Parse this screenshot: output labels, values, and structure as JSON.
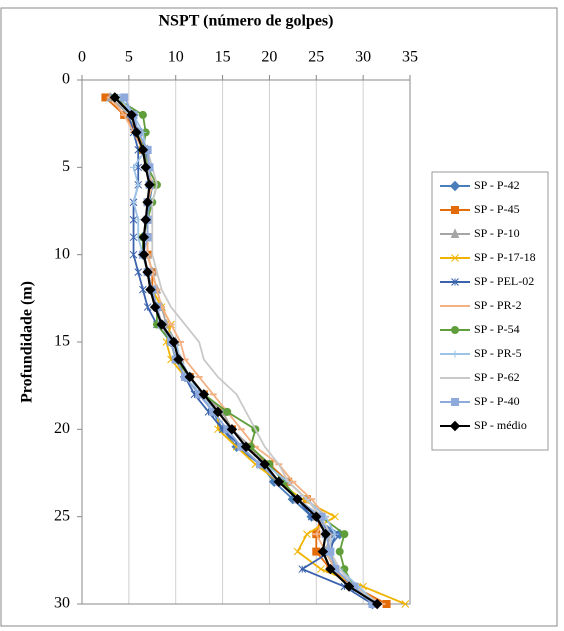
{
  "chart_data": {
    "type": "line",
    "orientation": "vertical",
    "title": "NSPT  (número de golpes)",
    "y_label": "Profundidade (m)",
    "xlim": [
      0,
      35
    ],
    "xticks": [
      0,
      5,
      10,
      15,
      20,
      25,
      30,
      35
    ],
    "ylim": [
      0,
      30
    ],
    "yticks": [
      0,
      5,
      10,
      15,
      20,
      25,
      30
    ],
    "y_inverted": true,
    "x_axis_position": "top",
    "grid": true,
    "legend": "right",
    "y": [
      1,
      2,
      3,
      4,
      5,
      6,
      7,
      8,
      9,
      10,
      11,
      12,
      13,
      14,
      15,
      16,
      17,
      18,
      19,
      20,
      21,
      22,
      23,
      24,
      25,
      26,
      27,
      28,
      29,
      30
    ],
    "series": [
      {
        "name": "SP - P-42",
        "color": "#4a7ebb",
        "marker": "diamond",
        "values": [
          3.5,
          5.5,
          6,
          6.8,
          7,
          7.5,
          7.2,
          7,
          6.5,
          6.5,
          7,
          7.5,
          8,
          8.5,
          9.5,
          10,
          11,
          12.5,
          14,
          15,
          16.5,
          19,
          20.5,
          22.5,
          24.5,
          27.5,
          26,
          27,
          29,
          31
        ]
      },
      {
        "name": "SP - P-45",
        "color": "#e36c09",
        "marker": "square",
        "values": [
          2.5,
          4.5,
          6,
          6.5,
          7,
          7.5,
          7,
          7,
          7,
          7,
          7.5,
          7.5,
          8,
          8.5,
          9.5,
          10,
          11.5,
          13,
          15,
          16,
          17.5,
          20,
          22,
          24,
          25.5,
          25,
          25,
          26.5,
          29,
          32.5
        ]
      },
      {
        "name": "SP - P-10",
        "color": "#a5a5a5",
        "marker": "triangle",
        "values": [
          3,
          5,
          6,
          7,
          7,
          7.5,
          7,
          7,
          7,
          7,
          7.5,
          8,
          8.5,
          9,
          10,
          10.5,
          11.5,
          13,
          15,
          16,
          18,
          19.5,
          21,
          23,
          25,
          26.5,
          26,
          27,
          29,
          31
        ]
      },
      {
        "name": "SP - P-17-18",
        "color": "#f0b400",
        "marker": "x",
        "values": [
          4,
          5,
          6,
          6.5,
          7,
          7.5,
          7,
          7,
          6.5,
          6.5,
          7,
          7.5,
          8.5,
          9.5,
          9,
          9.5,
          11,
          12.5,
          14.5,
          14.5,
          16.5,
          18.5,
          21,
          23.5,
          27,
          24,
          23,
          25.5,
          30,
          34.5
        ]
      },
      {
        "name": "SP - PEL-02",
        "color": "#3a62ad",
        "marker": "star",
        "values": [
          3.5,
          5,
          5.5,
          6,
          6,
          6,
          5.5,
          5.5,
          5.5,
          5.5,
          6,
          6.5,
          7,
          8,
          9.5,
          10,
          11,
          12,
          13.5,
          15,
          17,
          19,
          21,
          23,
          24.5,
          27,
          26.5,
          23.5,
          28,
          31
        ]
      },
      {
        "name": "SP - PR-2",
        "color": "#f4b183",
        "marker": "dash",
        "values": [
          3,
          4.5,
          5.5,
          6.5,
          7,
          7.5,
          7,
          7,
          7,
          7,
          7.5,
          8,
          8.5,
          9.5,
          10.5,
          11,
          12.5,
          14,
          15.5,
          17,
          18.5,
          21,
          22.5,
          24.5,
          26,
          25,
          26,
          27,
          29,
          32
        ]
      },
      {
        "name": "SP - P-54",
        "color": "#5f9e3a",
        "marker": "circle",
        "values": [
          3.5,
          6.5,
          6.8,
          6.5,
          7,
          8,
          7.5,
          7,
          6.5,
          6.5,
          7,
          7.5,
          8,
          8,
          9.5,
          10,
          11.5,
          13,
          15.5,
          18.5,
          18,
          20,
          21.5,
          23,
          25.5,
          28,
          27.5,
          28,
          29,
          31
        ]
      },
      {
        "name": "SP - PR-5",
        "color": "#9dc3e6",
        "marker": "plus",
        "values": [
          4,
          5.5,
          6.5,
          6.8,
          5.5,
          6,
          5.5,
          6,
          6,
          6.5,
          7,
          7.5,
          8,
          8.5,
          10,
          10.5,
          11.5,
          12.5,
          14.5,
          16,
          17.5,
          19.5,
          22,
          24,
          26,
          27,
          26,
          27.5,
          29.5,
          31.5
        ]
      },
      {
        "name": "SP - P-62",
        "color": "#c9c9c9",
        "marker": "none",
        "values": [
          3.5,
          5,
          6,
          7,
          7.5,
          8,
          7.5,
          7.5,
          7.5,
          7.5,
          8,
          8.5,
          9.5,
          11,
          12.5,
          13,
          14.5,
          16.5,
          17.5,
          18.5,
          19.5,
          21,
          22,
          24,
          25.5,
          26.5,
          26.5,
          27.5,
          29,
          31.5
        ]
      },
      {
        "name": "SP - P-40",
        "color": "#8ea9db",
        "marker": "square",
        "values": [
          4.5,
          5.5,
          6,
          7,
          7.2,
          7.2,
          7,
          7,
          7,
          6.5,
          7,
          7.5,
          8,
          8.5,
          9.5,
          10,
          11,
          12.5,
          14,
          15.5,
          17,
          19,
          21,
          23,
          25.5,
          26,
          26.5,
          27,
          29,
          31
        ]
      },
      {
        "name": "SP - médio",
        "color": "#000000",
        "marker": "diamond",
        "values": [
          3.5,
          5.3,
          5.8,
          6.5,
          6.8,
          7.2,
          7,
          6.8,
          6.6,
          6.6,
          7,
          7.3,
          7.8,
          8.5,
          9.8,
          10.3,
          11.5,
          13,
          14.5,
          16,
          17.5,
          19.5,
          21,
          23,
          25,
          26,
          25.7,
          26.5,
          28.5,
          31.5
        ]
      }
    ]
  }
}
